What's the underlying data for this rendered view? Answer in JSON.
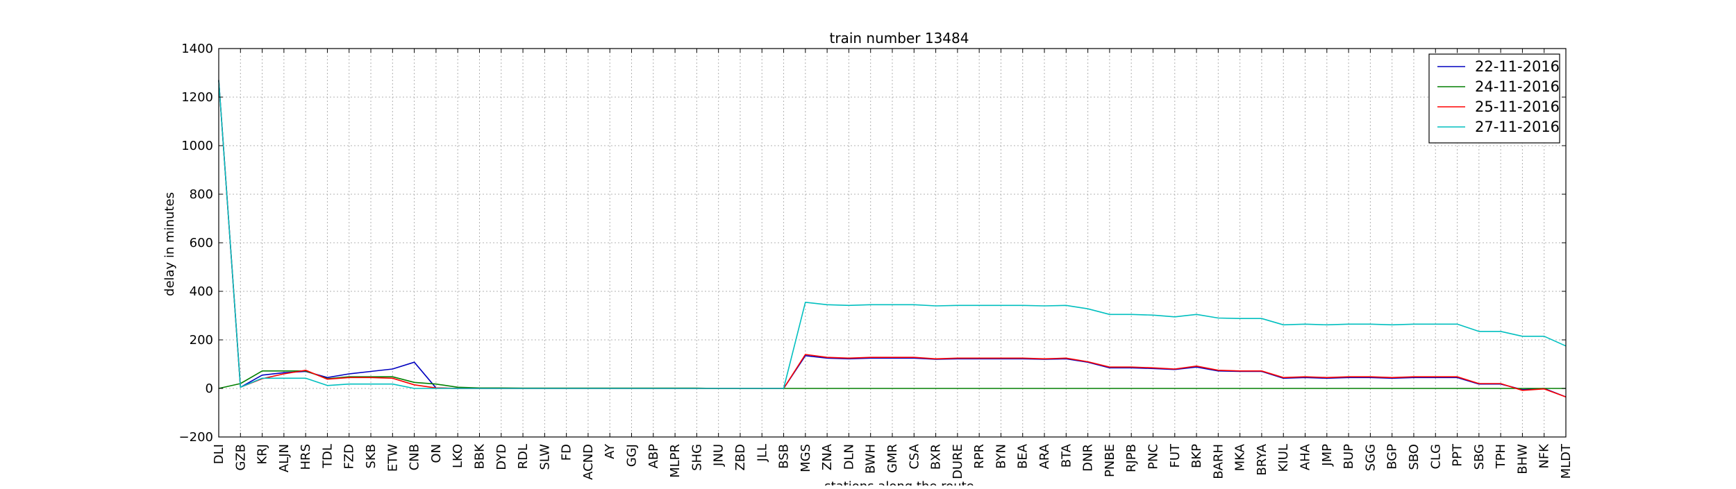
{
  "chart_data": {
    "type": "line",
    "title": "train number 13484",
    "xlabel": "stations along the route",
    "ylabel": "delay in minutes",
    "ylim": [
      -200,
      1400
    ],
    "yticks": [
      -200,
      0,
      200,
      400,
      600,
      800,
      1000,
      1200,
      1400
    ],
    "grid": true,
    "legend_position": "top-right",
    "categories": [
      "DLI",
      "GZB",
      "KRJ",
      "ALJN",
      "HRS",
      "TDL",
      "FZD",
      "SKB",
      "ETW",
      "CNB",
      "ON",
      "LKO",
      "BBK",
      "DYD",
      "RDL",
      "SLW",
      "FD",
      "ACND",
      "AY",
      "GGJ",
      "ABP",
      "MLPR",
      "SHG",
      "JNU",
      "ZBD",
      "JLL",
      "BSB",
      "MGS",
      "ZNA",
      "DLN",
      "BWH",
      "GMR",
      "CSA",
      "BXR",
      "DURE",
      "RPR",
      "BYN",
      "BEA",
      "ARA",
      "BTA",
      "DNR",
      "PNBE",
      "RJPB",
      "PNC",
      "FUT",
      "BKP",
      "BARH",
      "MKA",
      "BRYA",
      "KIUL",
      "AHA",
      "JMP",
      "BUP",
      "SGG",
      "BGP",
      "SBO",
      "CLG",
      "PPT",
      "SBG",
      "TPH",
      "BHW",
      "NFK",
      "MLDT"
    ],
    "series": [
      {
        "name": "22-11-2016",
        "color": "#0000bf",
        "values": [
          1270,
          5,
          55,
          65,
          70,
          45,
          60,
          70,
          80,
          108,
          2,
          0,
          0,
          0,
          0,
          0,
          0,
          0,
          0,
          0,
          0,
          0,
          0,
          0,
          0,
          0,
          0,
          135,
          125,
          122,
          125,
          125,
          125,
          120,
          122,
          122,
          122,
          122,
          120,
          122,
          108,
          85,
          85,
          82,
          78,
          88,
          72,
          70,
          70,
          42,
          45,
          42,
          45,
          45,
          42,
          45,
          45,
          45,
          18,
          18,
          -5,
          0,
          -35
        ]
      },
      {
        "name": "24-11-2016",
        "color": "#007f00",
        "values": [
          0,
          20,
          72,
          72,
          72,
          40,
          48,
          48,
          48,
          25,
          18,
          5,
          2,
          2,
          1,
          1,
          1,
          1,
          1,
          1,
          1,
          1,
          1,
          0,
          0,
          0,
          0,
          0,
          0,
          0,
          0,
          0,
          0,
          0,
          0,
          0,
          0,
          0,
          0,
          0,
          0,
          0,
          0,
          0,
          0,
          0,
          0,
          0,
          0,
          0,
          0,
          0,
          0,
          0,
          0,
          0,
          0,
          0,
          0,
          0,
          0,
          0,
          0
        ]
      },
      {
        "name": "25-11-2016",
        "color": "#ff0000",
        "values": [
          1270,
          5,
          40,
          60,
          75,
          38,
          45,
          45,
          42,
          15,
          2,
          0,
          0,
          0,
          0,
          0,
          0,
          0,
          0,
          0,
          0,
          0,
          0,
          0,
          0,
          0,
          0,
          140,
          128,
          125,
          128,
          128,
          128,
          122,
          125,
          125,
          125,
          125,
          122,
          125,
          110,
          88,
          88,
          85,
          80,
          92,
          75,
          72,
          72,
          45,
          48,
          45,
          48,
          48,
          45,
          48,
          48,
          48,
          20,
          20,
          -8,
          -2,
          -35
        ]
      },
      {
        "name": "27-11-2016",
        "color": "#00bfbf",
        "values": [
          1270,
          5,
          42,
          42,
          42,
          12,
          18,
          18,
          18,
          0,
          0,
          0,
          0,
          0,
          0,
          0,
          0,
          0,
          0,
          0,
          0,
          0,
          0,
          0,
          0,
          0,
          0,
          355,
          345,
          342,
          345,
          345,
          345,
          340,
          342,
          342,
          342,
          342,
          340,
          342,
          328,
          305,
          305,
          302,
          295,
          305,
          290,
          288,
          288,
          262,
          265,
          262,
          265,
          265,
          262,
          265,
          265,
          265,
          235,
          235,
          215,
          215,
          175
        ]
      }
    ]
  }
}
